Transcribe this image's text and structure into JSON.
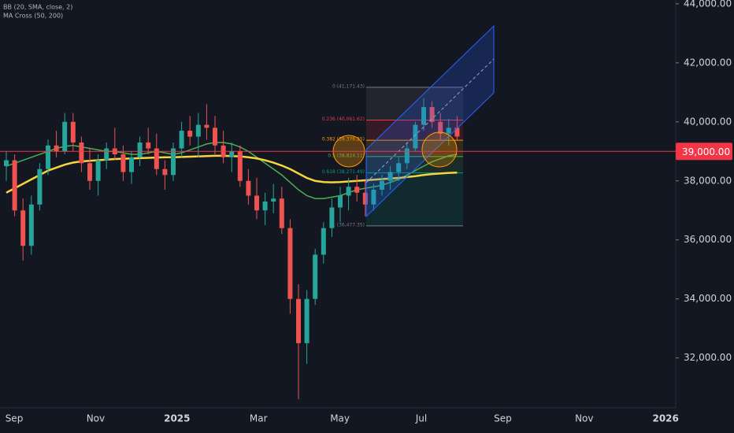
{
  "chart_data": {
    "type": "candlestick",
    "legend": [
      "BB (20, SMA, close, 2)",
      "MA Cross (50, 200)"
    ],
    "categories": [
      null,
      null,
      null,
      null,
      null,
      null,
      null,
      null,
      null,
      null,
      null,
      null,
      null,
      null,
      null,
      null,
      null,
      null,
      null,
      null,
      null,
      null,
      null,
      null,
      null,
      null,
      null,
      null,
      null,
      null,
      null,
      null,
      null,
      null,
      null,
      null,
      null,
      null,
      null,
      null,
      null,
      null,
      null,
      null,
      null,
      null,
      null,
      null,
      null,
      null,
      null,
      null,
      null,
      null,
      null
    ],
    "open": [
      38500,
      38700,
      37000,
      35800,
      37200,
      38400,
      39200,
      39000,
      40000,
      39300,
      38600,
      38000,
      38700,
      39100,
      38900,
      38300,
      38800,
      39300,
      39100,
      38400,
      38200,
      39100,
      39700,
      39500,
      39900,
      39800,
      39200,
      38800,
      39000,
      38000,
      37500,
      37000,
      37300,
      37400,
      36400,
      34000,
      32500,
      34000,
      35500,
      36400,
      37100,
      37500,
      37800,
      37600,
      37200,
      37700,
      38000,
      38300,
      38600,
      39100,
      39900,
      40500,
      40000,
      39600,
      39800
    ],
    "high": [
      39000,
      38900,
      37400,
      37500,
      38600,
      39400,
      39700,
      40300,
      40300,
      39500,
      39100,
      38900,
      39300,
      39800,
      39200,
      39000,
      39500,
      39800,
      39600,
      38700,
      39300,
      40000,
      40200,
      40300,
      40600,
      40200,
      39700,
      39300,
      39200,
      38400,
      38100,
      37600,
      37900,
      37800,
      36700,
      34500,
      34300,
      35700,
      36600,
      37400,
      37800,
      38100,
      38200,
      38000,
      37900,
      38200,
      38500,
      38800,
      39300,
      40000,
      40800,
      40700,
      40300,
      40100,
      40200
    ],
    "low": [
      38000,
      36800,
      35300,
      35500,
      37000,
      38200,
      38800,
      38900,
      39000,
      38300,
      37700,
      37500,
      38400,
      38700,
      38000,
      37900,
      38500,
      38900,
      38200,
      37700,
      38000,
      38800,
      39200,
      38800,
      39400,
      38900,
      38600,
      38300,
      37800,
      37200,
      36700,
      36500,
      36900,
      36200,
      33500,
      30600,
      31800,
      33800,
      35200,
      36100,
      36600,
      37000,
      37300,
      36800,
      37000,
      37500,
      37700,
      38000,
      38400,
      39000,
      39700,
      39800,
      39400,
      39200,
      39400
    ],
    "close": [
      38700,
      37000,
      35800,
      37200,
      38400,
      39200,
      39000,
      40000,
      39300,
      38600,
      38000,
      38700,
      39100,
      38900,
      38300,
      38800,
      39300,
      39100,
      38400,
      38200,
      39100,
      39700,
      39500,
      39900,
      39800,
      39200,
      38800,
      39000,
      38000,
      37500,
      37000,
      37300,
      37400,
      36400,
      34000,
      32500,
      34000,
      35500,
      36400,
      37100,
      37500,
      37800,
      37600,
      37200,
      37700,
      38000,
      38300,
      38600,
      39100,
      39900,
      40500,
      40000,
      39600,
      39800,
      39500
    ],
    "up_color": "#26a69a",
    "down_color": "#ef5350",
    "series": [
      {
        "color": "#4caf50",
        "values": [
          38500,
          38600,
          38700,
          38800,
          38900,
          39000,
          39100,
          39170,
          39200,
          39150,
          39100,
          39050,
          39000,
          39000,
          38950,
          38900,
          38900,
          38950,
          39000,
          38950,
          38900,
          38950,
          39050,
          39150,
          39250,
          39300,
          39300,
          39250,
          39150,
          39000,
          38800,
          38600,
          38400,
          38200,
          37950,
          37700,
          37500,
          37400,
          37400,
          37450,
          37500,
          37600,
          37700,
          37750,
          37800,
          37850,
          37950,
          38050,
          38200,
          38350,
          38500,
          38650,
          38750,
          38850,
          38900
        ]
      },
      {
        "color": "#f5d53b",
        "values": [
          37600,
          37750,
          37900,
          38050,
          38200,
          38350,
          38450,
          38550,
          38620,
          38660,
          38680,
          38700,
          38720,
          38740,
          38750,
          38760,
          38770,
          38780,
          38790,
          38800,
          38800,
          38810,
          38820,
          38830,
          38840,
          38850,
          38850,
          38840,
          38830,
          38800,
          38760,
          38700,
          38620,
          38520,
          38400,
          38250,
          38100,
          38000,
          37960,
          37950,
          37960,
          37980,
          38000,
          38020,
          38040,
          38060,
          38080,
          38100,
          38130,
          38160,
          38200,
          38230,
          38250,
          38270,
          38280
        ]
      }
    ],
    "ylim": [
      30310,
      44130
    ],
    "yticks": [
      {
        "value": 32000,
        "label": "32,000.00"
      },
      {
        "value": 34000,
        "label": "34,000.00"
      },
      {
        "value": 36000,
        "label": "36,000.00"
      },
      {
        "value": 38000,
        "label": "38,000.00"
      },
      {
        "value": 40000,
        "label": "40,000.00"
      },
      {
        "value": 42000,
        "label": "42,000.00"
      },
      {
        "value": 44000,
        "label": "44,000.00"
      }
    ],
    "x_labels": [
      "Sep",
      "Nov",
      "2025",
      "Mar",
      "May",
      "Jul",
      "Sep",
      "Nov",
      "2026"
    ],
    "price_line": {
      "value": 39000,
      "label": "39,000.00",
      "color": "#f23645"
    },
    "fib": [
      {
        "value": 41171.43,
        "label": "0 (41,171.43)",
        "color": "#787b86"
      },
      {
        "value": 40061.62,
        "label": "0.236 (40,061.62)",
        "color": "#f23645"
      },
      {
        "value": 39376.25,
        "label": "0.382 (39,376.25)",
        "color": "#ff9800"
      },
      {
        "value": 38824.11,
        "label": "0.5 (38,824.11)",
        "color": "#4caf50"
      },
      {
        "value": 38271.49,
        "label": "0.618 (38,271.49)",
        "color": "#089981"
      },
      {
        "value": 36477.35,
        "label": "1 (36,477.35)",
        "color": "#787b86"
      }
    ]
  }
}
